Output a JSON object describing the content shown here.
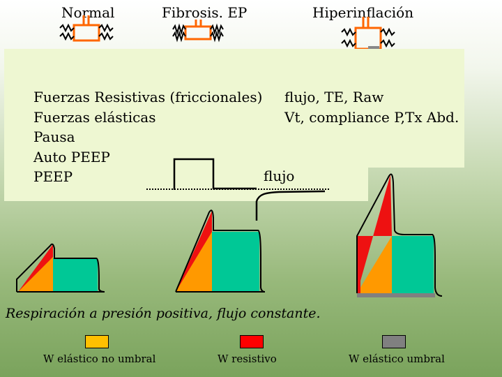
{
  "headers": {
    "normal": "Normal",
    "fibrosis": "Fibrosis. EP",
    "hiper": "Hiperinflación"
  },
  "panel_left": [
    "Fuerzas Resistivas (friccionales)",
    "Fuerzas elásticas",
    "Pausa",
    "Auto PEEP",
    "PEEP"
  ],
  "panel_right": [
    "flujo, TE, Raw",
    "Vt, compliance P,Tx Abd."
  ],
  "flow_label": "flujo",
  "caption": "Respiración a presión positiva, flujo constante.",
  "legend": [
    {
      "label": "W elástico no umbral",
      "color": "#ffc000"
    },
    {
      "label": "W resistivo",
      "color": "#ff0000"
    },
    {
      "label": "W elástico umbral",
      "color": "#808080"
    }
  ],
  "colors": {
    "resistive": "#ee1111",
    "elastic": "#ff9900",
    "pause": "#00c896",
    "panel": "#eef7d2"
  }
}
